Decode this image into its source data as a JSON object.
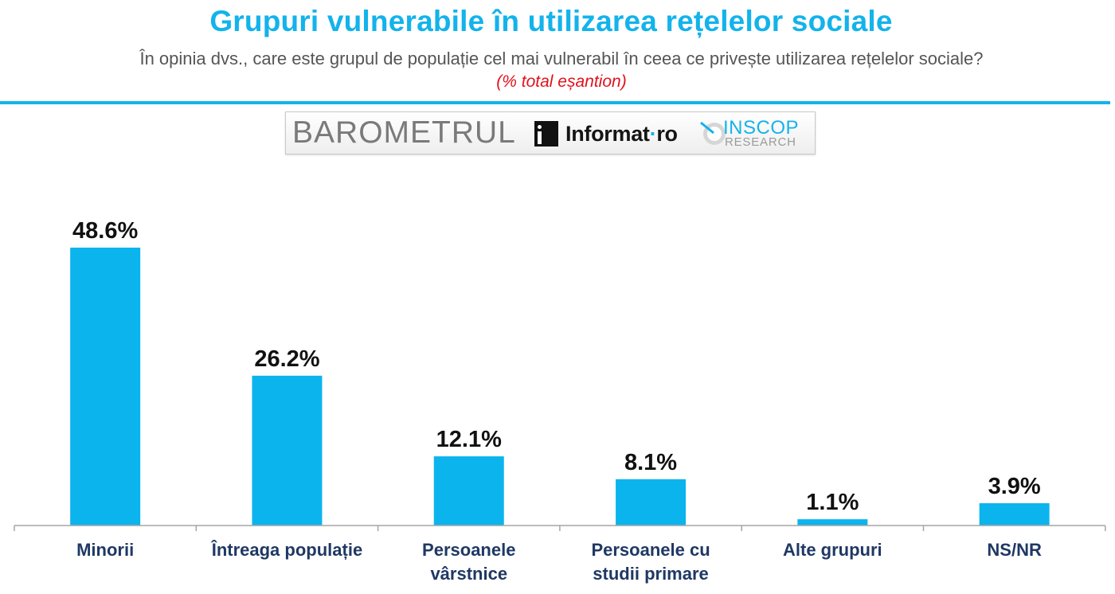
{
  "header": {
    "title": "Grupuri vulnerabile în utilizarea rețelelor sociale",
    "subtitle": "În opinia dvs., care este grupul de populație cel mai vulnerabil în ceea ce privește utilizarea rețelelor sociale?",
    "note": "(% total eșantion)",
    "accent_color": "#13b3eb",
    "note_color": "#e0121b"
  },
  "logo": {
    "barometrul": "BAROMETRUL",
    "informat": "Informat",
    "informat_suffix": "ro",
    "informat_icon": "info-i-icon",
    "inscop": "INSCOP",
    "research": "RESEARCH",
    "inscop_icon": "inscop-circle-icon"
  },
  "chart_data": {
    "type": "bar",
    "categories": [
      [
        "Minorii"
      ],
      [
        "Întreaga populație"
      ],
      [
        "Persoanele",
        "vârstnice"
      ],
      [
        "Persoanele cu",
        "studii primare"
      ],
      [
        "Alte grupuri"
      ],
      [
        "NS/NR"
      ]
    ],
    "values": [
      48.6,
      26.2,
      12.1,
      8.1,
      1.1,
      3.9
    ],
    "value_labels": [
      "48.6%",
      "26.2%",
      "12.1%",
      "8.1%",
      "1.1%",
      "3.9%"
    ],
    "unit": "%",
    "ylim": [
      0,
      48.6
    ],
    "bar_color": "#0cb4ee",
    "grid": false,
    "legend": "none"
  }
}
